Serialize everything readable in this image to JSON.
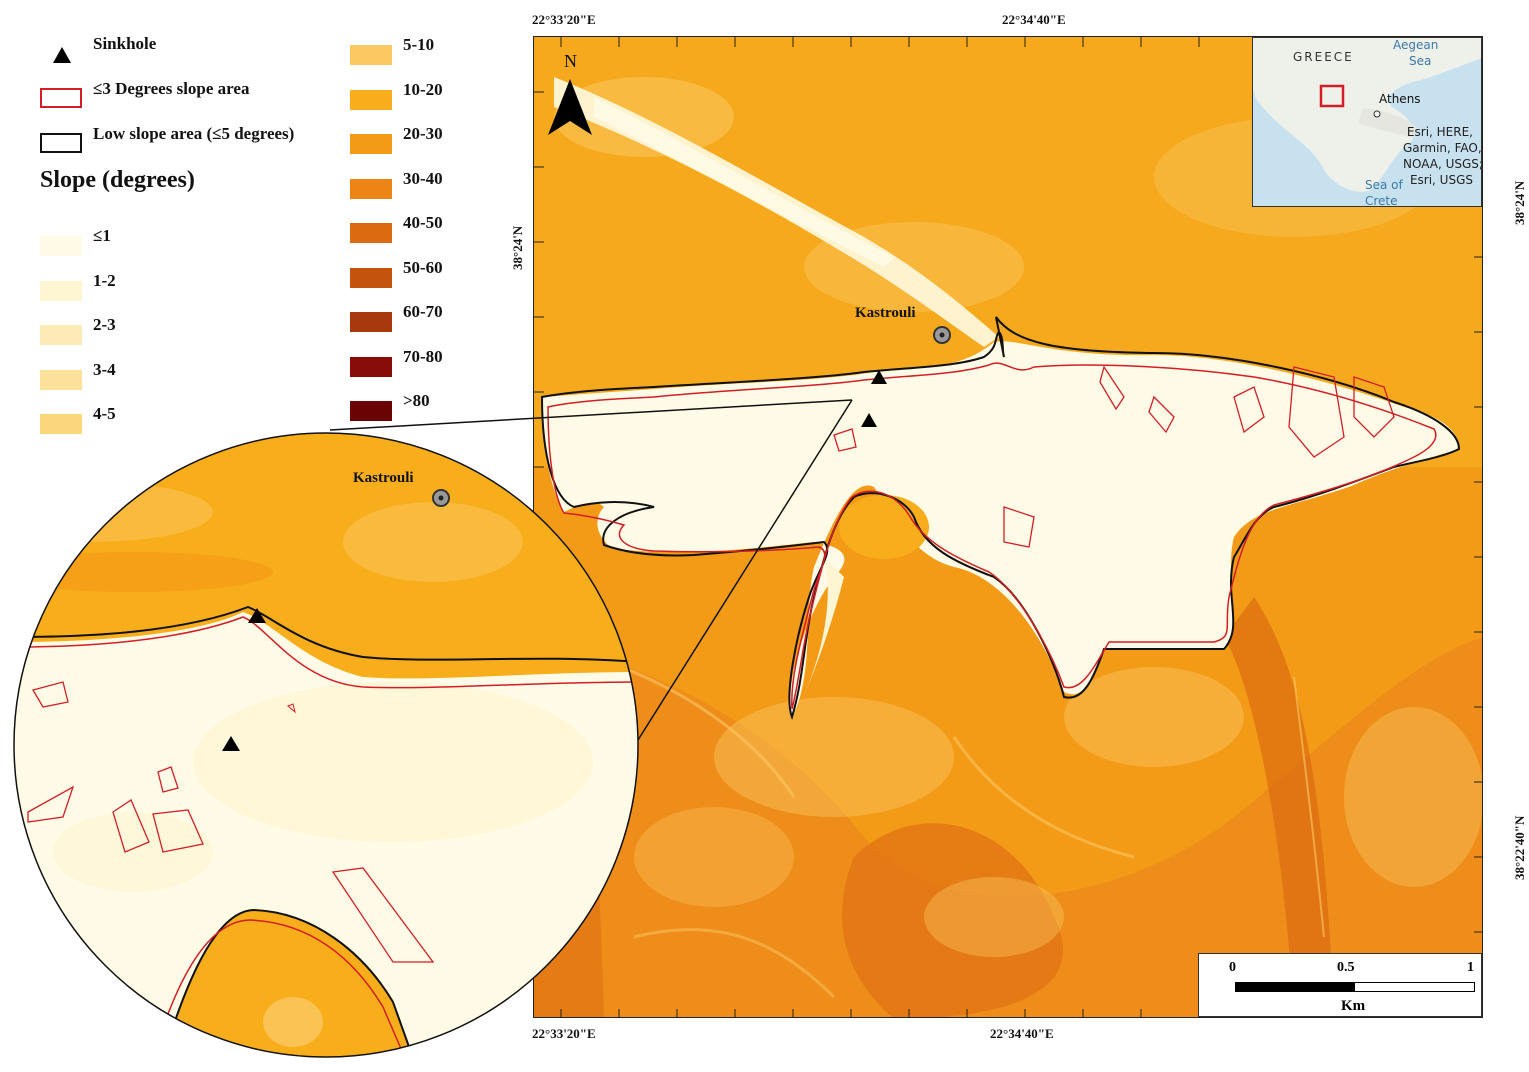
{
  "legend": {
    "sinkhole": "Sinkhole",
    "low3": "≤3 Degrees slope area",
    "low5": "Low slope area (≤5 degrees)",
    "slope_title": "Slope (degrees)",
    "classes_left": [
      {
        "label": "≤1",
        "color": "#fffbe6"
      },
      {
        "label": "1-2",
        "color": "#fff5d2"
      },
      {
        "label": "2-3",
        "color": "#fdebb7"
      },
      {
        "label": "3-4",
        "color": "#fce19a"
      },
      {
        "label": "4-5",
        "color": "#fbd67c"
      }
    ],
    "classes_right": [
      {
        "label": "5-10",
        "color": "#fbc862"
      },
      {
        "label": "10-20",
        "color": "#f8ad1a"
      },
      {
        "label": "20-30",
        "color": "#f39a16"
      },
      {
        "label": "30-40",
        "color": "#ec8516"
      },
      {
        "label": "40-50",
        "color": "#db6a10"
      },
      {
        "label": "50-60",
        "color": "#c4540d"
      },
      {
        "label": "60-70",
        "color": "#a7390c"
      },
      {
        "label": "70-80",
        "color": "#880d08"
      },
      {
        "label": ">80",
        "color": "#6a0404"
      }
    ]
  },
  "coords": {
    "top_left": "22°33'20\"E",
    "top_center": "22°34'40\"E",
    "bottom_left": "22°33'20\"E",
    "bottom_center": "22°34'40\"E",
    "left_lat": "38°24'N",
    "right_lat_top": "38°24'N",
    "right_lat_bottom": "38°22'40\"N"
  },
  "map": {
    "north": "N",
    "place": "Kastrouli",
    "zoom_place": "Kastrouli"
  },
  "inset": {
    "country": "GREECE",
    "sea1_line1": "Aegean",
    "sea1_line2": "Sea",
    "city": "Athens",
    "sea2_line1": "Sea of",
    "sea2_line2": "Crete",
    "attribution": [
      "Esri, HERE,",
      "Garmin, FAO,",
      "NOAA, USGS;",
      "Esri, USGS"
    ]
  },
  "scalebar": {
    "ticks": [
      "0",
      "0.5",
      "1"
    ],
    "unit": "Km"
  }
}
